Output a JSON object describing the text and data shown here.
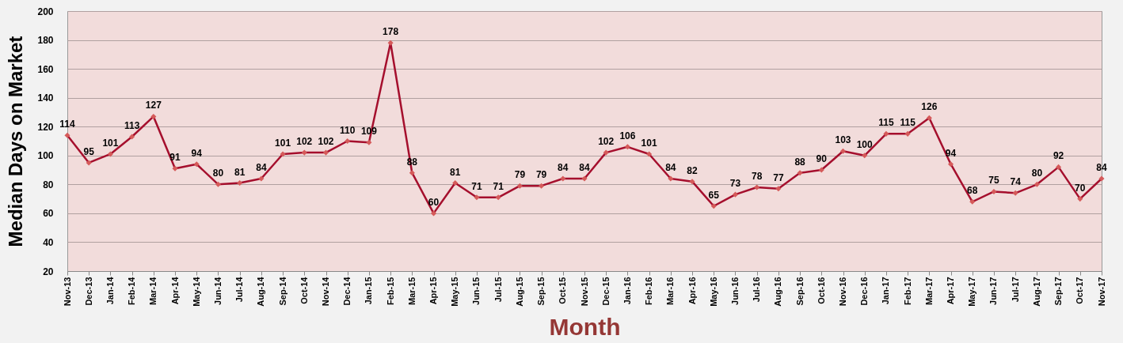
{
  "chart_data": {
    "type": "line",
    "xlabel": "Month",
    "ylabel": "Median Days on Market",
    "categories": [
      "Nov-13",
      "Dec-13",
      "Jan-14",
      "Feb-14",
      "Mar-14",
      "Apr-14",
      "May-14",
      "Jun-14",
      "Jul-14",
      "Aug-14",
      "Sep-14",
      "Oct-14",
      "Nov-14",
      "Dec-14",
      "Jan-15",
      "Feb-15",
      "Mar-15",
      "Apr-15",
      "May-15",
      "Jun-15",
      "Jul-15",
      "Aug-15",
      "Sep-15",
      "Oct-15",
      "Nov-15",
      "Dec-15",
      "Jan-16",
      "Feb-16",
      "Mar-16",
      "Apr-16",
      "May-16",
      "Jun-16",
      "Jul-16",
      "Aug-16",
      "Sep-16",
      "Oct-16",
      "Nov-16",
      "Dec-16",
      "Jan-17",
      "Feb-17",
      "Mar-17",
      "Apr-17",
      "May-17",
      "Jun-17",
      "Jul-17",
      "Aug-17",
      "Sep-17",
      "Oct-17",
      "Nov-17"
    ],
    "series": [
      {
        "color": "#a50f2d",
        "values": [
          114,
          95,
          101,
          113,
          127,
          91,
          94,
          80,
          81,
          84,
          101,
          102,
          102,
          110,
          109,
          178,
          88,
          60,
          81,
          71,
          71,
          79,
          79,
          84,
          84,
          102,
          106,
          101,
          84,
          82,
          65,
          73,
          78,
          77,
          88,
          90,
          103,
          100,
          115,
          115,
          126,
          94,
          68,
          75,
          74,
          80,
          92,
          70,
          84
        ]
      }
    ],
    "ylim": [
      20,
      200
    ],
    "yticks": [
      20,
      40,
      60,
      80,
      100,
      120,
      140,
      160,
      180,
      200
    ],
    "grid": "y",
    "marker": "diamond",
    "line_style": "solid",
    "data_labels": true,
    "legend": false
  }
}
